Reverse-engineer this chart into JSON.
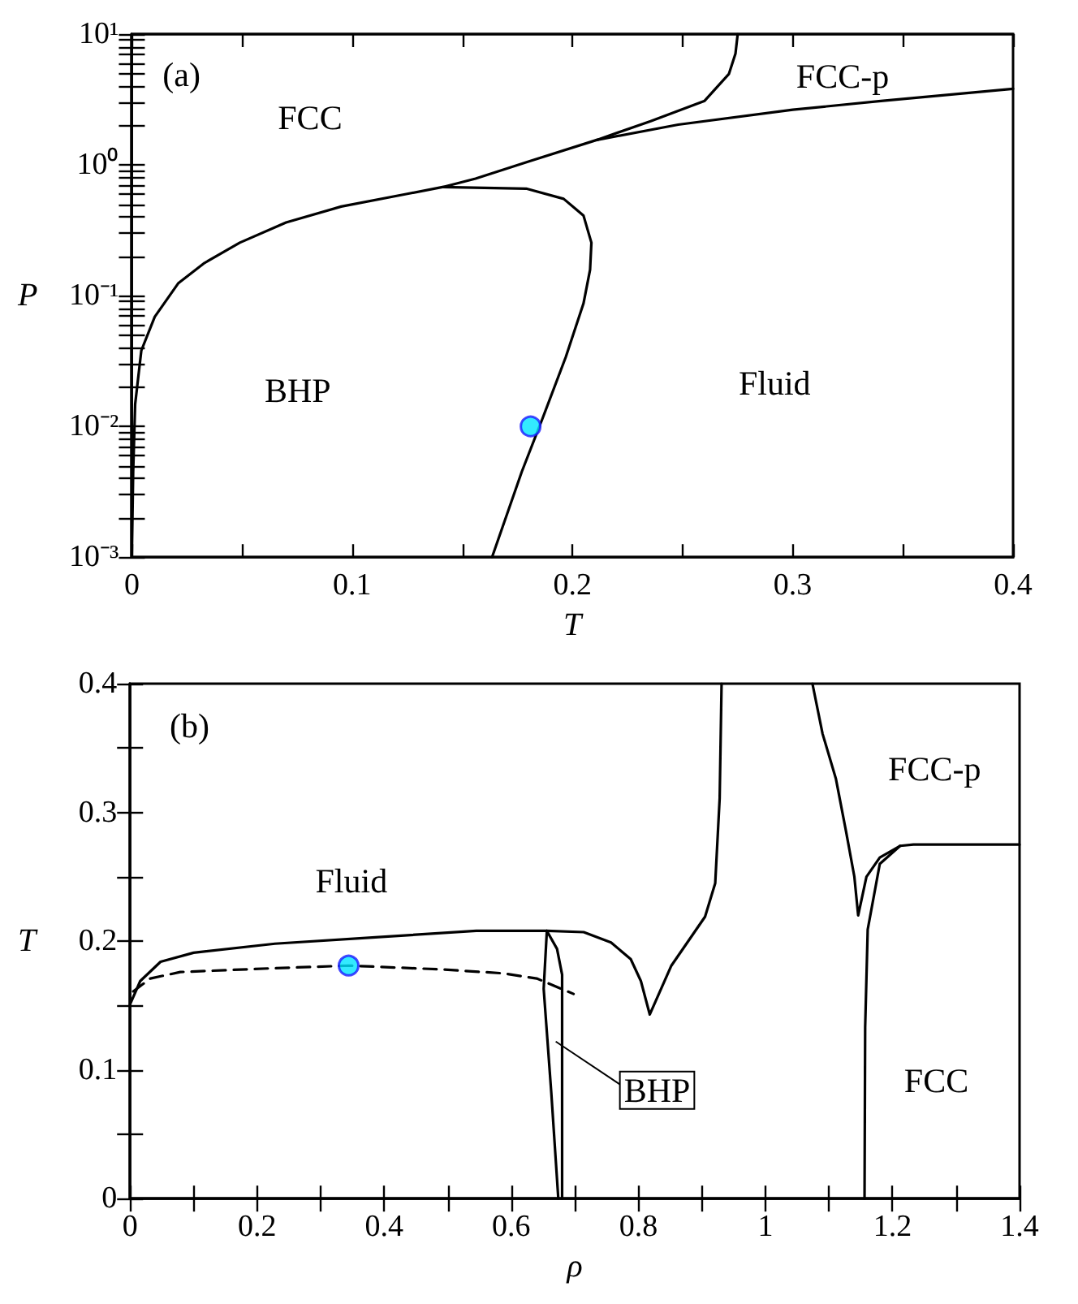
{
  "chart_data": [
    {
      "type": "line",
      "xlabel": "T",
      "ylabel": "P",
      "log": "y",
      "xlim": [
        0,
        0.4
      ],
      "ylim": [
        0.001,
        10
      ],
      "xticks": [
        0,
        {
          "value": 0.05,
          "label": null
        },
        0.1,
        {
          "value": 0.15,
          "label": null
        },
        0.2,
        {
          "value": 0.25,
          "label": null
        },
        0.3,
        {
          "value": 0.35,
          "label": null
        },
        0.4
      ],
      "yticks": [
        {
          "value": 0.001,
          "label": "10⁻³"
        },
        {
          "value": 0.002,
          "label": null
        },
        {
          "value": 0.003,
          "label": null
        },
        {
          "value": 0.004,
          "label": null
        },
        {
          "value": 0.005,
          "label": null
        },
        {
          "value": 0.006,
          "label": null
        },
        {
          "value": 0.007,
          "label": null
        },
        {
          "value": 0.008,
          "label": null
        },
        {
          "value": 0.009,
          "label": null
        },
        {
          "value": 0.01,
          "label": "10⁻²"
        },
        {
          "value": 0.02,
          "label": null
        },
        {
          "value": 0.03,
          "label": null
        },
        {
          "value": 0.04,
          "label": null
        },
        {
          "value": 0.05,
          "label": null
        },
        {
          "value": 0.06,
          "label": null
        },
        {
          "value": 0.07,
          "label": null
        },
        {
          "value": 0.08,
          "label": null
        },
        {
          "value": 0.09,
          "label": null
        },
        {
          "value": 0.1,
          "label": "10⁻¹"
        },
        {
          "value": 0.2,
          "label": null
        },
        {
          "value": 0.3,
          "label": null
        },
        {
          "value": 0.4,
          "label": null
        },
        {
          "value": 0.5,
          "label": null
        },
        {
          "value": 0.6,
          "label": null
        },
        {
          "value": 0.7,
          "label": null
        },
        {
          "value": 0.8,
          "label": null
        },
        {
          "value": 0.9,
          "label": null
        },
        {
          "value": 1,
          "label": "10⁰"
        },
        {
          "value": 2,
          "label": null
        },
        {
          "value": 3,
          "label": null
        },
        {
          "value": 4,
          "label": null
        },
        {
          "value": 5,
          "label": null
        },
        {
          "value": 6,
          "label": null
        },
        {
          "value": 7,
          "label": null
        },
        {
          "value": 8,
          "label": null
        },
        {
          "value": 9,
          "label": null
        },
        {
          "value": 10,
          "label": "10¹"
        }
      ],
      "series": [
        {
          "color": "#000000",
          "x": [
            0,
            0.0006,
            0.0015,
            0.0043,
            0.0104,
            0.021,
            0.033,
            0.049,
            0.07,
            0.095,
            0.125,
            0.141,
            0.156,
            0.18,
            0.211,
            0.2355,
            0.26,
            0.271,
            0.274,
            0.275
          ],
          "values": [
            0.001,
            0.0045,
            0.0148,
            0.038,
            0.069,
            0.124,
            0.178,
            0.254,
            0.363,
            0.48,
            0.6,
            0.676,
            0.785,
            1.06,
            1.55,
            2.16,
            3.09,
            4.95,
            7.1,
            10
          ]
        },
        {
          "color": "#000000",
          "x": [
            0.211,
            0.248,
            0.3,
            0.34,
            0.4
          ],
          "values": [
            1.55,
            2.03,
            2.64,
            3.08,
            3.82
          ]
        },
        {
          "color": "#000000",
          "x": [
            0.141,
            0.179,
            0.196,
            0.205,
            0.2086,
            0.208,
            0.205,
            0.197,
            0.1865,
            0.177,
            0.1635
          ],
          "values": [
            0.676,
            0.658,
            0.55,
            0.41,
            0.254,
            0.158,
            0.087,
            0.034,
            0.0116,
            0.0045,
            0.001
          ]
        },
        {
          "type": "scatter",
          "marker": "circle",
          "color": "#00e5ff",
          "x": [
            0.181
          ],
          "values": [
            0.01
          ]
        }
      ],
      "annotations": [
        "(a)",
        "FCC",
        "FCC-p",
        "BHP",
        "Fluid"
      ]
    },
    {
      "type": "line",
      "xlabel": "ρ",
      "ylabel": "T",
      "xlim": [
        0,
        1.4
      ],
      "ylim": [
        0,
        0.4
      ],
      "xticks": [
        0,
        {
          "value": 0.1,
          "label": null
        },
        0.2,
        {
          "value": 0.3,
          "label": null
        },
        0.4,
        {
          "value": 0.5,
          "label": null
        },
        0.6,
        {
          "value": 0.7,
          "label": null
        },
        0.8,
        {
          "value": 0.9,
          "label": null
        },
        1,
        {
          "value": 1.1,
          "label": null
        },
        1.2,
        {
          "value": 1.3,
          "label": null
        },
        1.4
      ],
      "yticks": [
        0,
        {
          "value": 0.05,
          "label": null
        },
        0.1,
        {
          "value": 0.15,
          "label": null
        },
        0.2,
        {
          "value": 0.25,
          "label": null
        },
        0.3,
        {
          "value": 0.35,
          "label": null
        },
        0.4
      ],
      "series": [
        {
          "color": "#000000",
          "x": [
            0,
            0.016,
            0.048,
            0.1,
            0.228,
            0.386,
            0.545,
            0.656,
            0.714,
            0.757,
            0.788,
            0.804,
            0.818,
            0.852,
            0.905,
            0.921,
            0.928,
            0.931
          ],
          "values": [
            0.151,
            0.169,
            0.184,
            0.191,
            0.198,
            0.203,
            0.208,
            0.208,
            0.207,
            0.199,
            0.186,
            0.169,
            0.143,
            0.181,
            0.219,
            0.245,
            0.311,
            0.4
          ]
        },
        {
          "color": "#000000",
          "x": [
            1.074,
            1.09,
            1.111,
            1.127,
            1.14,
            1.146,
            1.159,
            1.18,
            1.212,
            1.233,
            1.4
          ],
          "values": [
            0.4,
            0.361,
            0.326,
            0.285,
            0.25,
            0.22,
            0.25,
            0.265,
            0.274,
            0.275,
            0.275
          ]
        },
        {
          "color": "#000000",
          "x": [
            1.156,
            1.157,
            1.161,
            1.18,
            1.212
          ],
          "values": [
            0,
            0.133,
            0.209,
            0.26,
            0.274
          ]
        },
        {
          "color": "#000000",
          "x": [
            0.656,
            0.651,
            0.663,
            0.674
          ],
          "values": [
            0.208,
            0.163,
            0.082,
            0
          ]
        },
        {
          "color": "#000000",
          "x": [
            0.656,
            0.672,
            0.68,
            0.68,
            0.68
          ],
          "values": [
            0.208,
            0.194,
            0.174,
            0.082,
            0
          ]
        },
        {
          "color": "#000000",
          "line_style": "dashed",
          "x": [
            0.005,
            0.032,
            0.079,
            0.228,
            0.344,
            0.492,
            0.587,
            0.64,
            0.698
          ],
          "values": [
            0.161,
            0.171,
            0.176,
            0.179,
            0.181,
            0.178,
            0.175,
            0.171,
            0.159
          ]
        },
        {
          "type": "scatter",
          "marker": "circle",
          "color": "#00e5ff",
          "x": [
            0.344
          ],
          "values": [
            0.181
          ]
        }
      ],
      "annotations": [
        "(b)",
        "Fluid",
        "FCC-p",
        "FCC",
        {
          "text": "BHP",
          "x": 0.67,
          "y": 0.122
        }
      ]
    }
  ]
}
